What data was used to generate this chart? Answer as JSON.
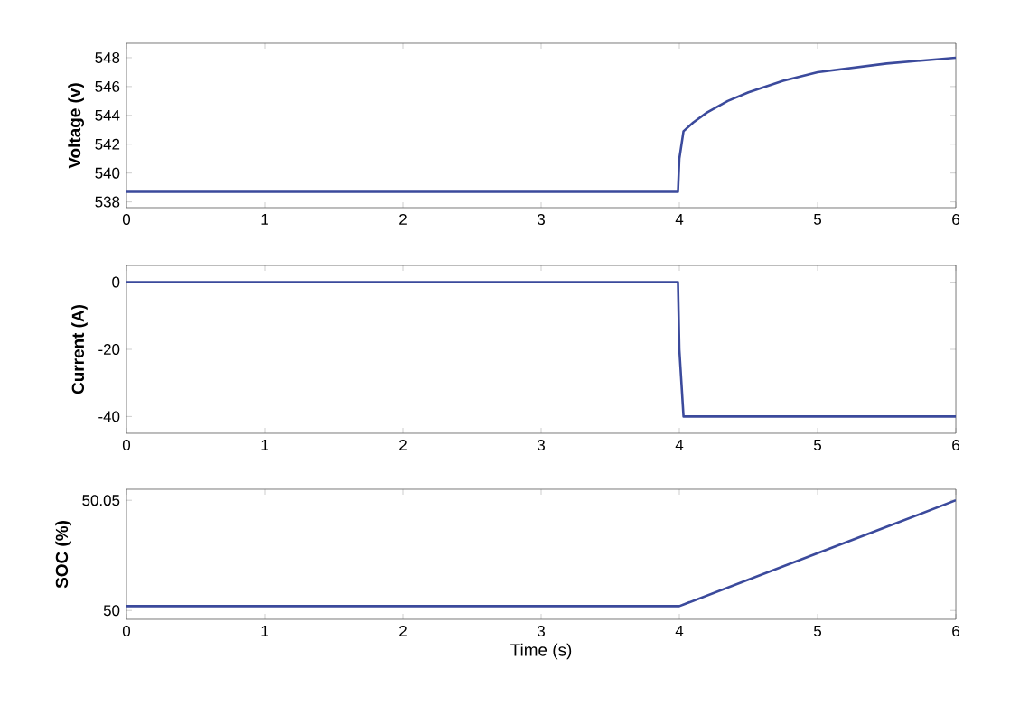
{
  "chart_data": [
    {
      "type": "line",
      "ylabel": "Voltage (v)",
      "x": [
        0,
        1,
        2,
        3,
        3.99,
        4.0,
        4.03,
        4.1,
        4.2,
        4.35,
        4.5,
        4.75,
        5.0,
        5.25,
        5.5,
        5.75,
        6.0
      ],
      "values": [
        538.7,
        538.7,
        538.7,
        538.7,
        538.7,
        541,
        542.9,
        543.5,
        544.2,
        545,
        545.6,
        546.4,
        547,
        547.3,
        547.6,
        547.8,
        548
      ],
      "color": "#3b4a9c",
      "xlim": [
        0,
        6
      ],
      "xticks": [
        0,
        1,
        2,
        3,
        4,
        5,
        6
      ],
      "ylim": [
        537.6,
        549
      ],
      "yticks": [
        538,
        540,
        542,
        544,
        546,
        548
      ]
    },
    {
      "type": "line",
      "ylabel": "Current (A)",
      "x": [
        0,
        1,
        2,
        3,
        3.99,
        4.0,
        4.03,
        4.5,
        5,
        5.5,
        6
      ],
      "values": [
        0,
        0,
        0,
        0,
        0,
        -20,
        -40,
        -40,
        -40,
        -40,
        -40
      ],
      "color": "#3b4a9c",
      "xlim": [
        0,
        6
      ],
      "xticks": [
        0,
        1,
        2,
        3,
        4,
        5,
        6
      ],
      "ylim": [
        -45,
        5
      ],
      "yticks": [
        -40,
        -20,
        0
      ]
    },
    {
      "type": "line",
      "xlabel": "Time (s)",
      "ylabel": "SOC (%)",
      "x": [
        0,
        1,
        2,
        3,
        4,
        4.5,
        5,
        5.5,
        6
      ],
      "values": [
        50.002,
        50.002,
        50.002,
        50.002,
        50.002,
        50.014,
        50.026,
        50.038,
        50.05
      ],
      "color": "#3b4a9c",
      "xlim": [
        0,
        6
      ],
      "xticks": [
        0,
        1,
        2,
        3,
        4,
        5,
        6
      ],
      "ylim": [
        49.996,
        50.055
      ],
      "yticks": [
        50,
        50.05
      ]
    }
  ]
}
